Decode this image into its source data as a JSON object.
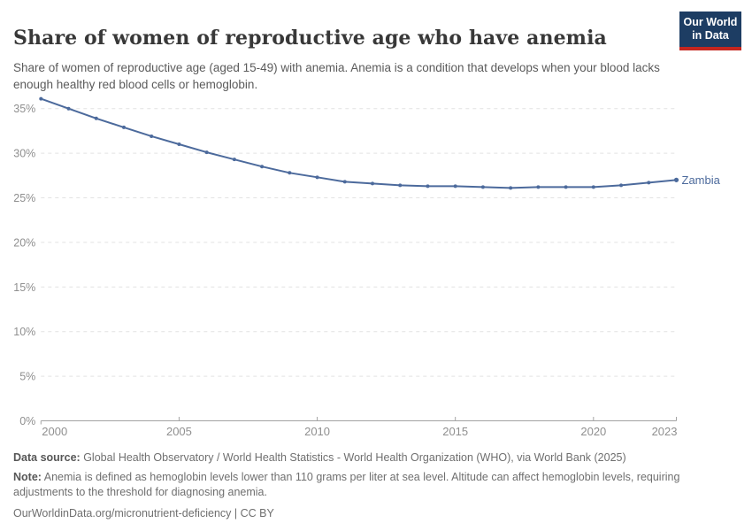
{
  "header": {
    "title": "Share of women of reproductive age who have anemia",
    "subtitle": "Share of women of reproductive age (aged 15-49) with anemia. Anemia is a condition that develops when your blood lacks enough healthy red blood cells or hemoglobin.",
    "logo": {
      "line1": "Our World",
      "line2": "in Data",
      "bg_color": "#1d3d63",
      "accent_color": "#c4261f"
    }
  },
  "chart_data": {
    "type": "line",
    "title": "Share of women of reproductive age who have anemia",
    "xlabel": "",
    "ylabel": "",
    "x": [
      2000,
      2001,
      2002,
      2003,
      2004,
      2005,
      2006,
      2007,
      2008,
      2009,
      2010,
      2011,
      2012,
      2013,
      2014,
      2015,
      2016,
      2017,
      2018,
      2019,
      2020,
      2021,
      2022,
      2023
    ],
    "series": [
      {
        "name": "Zambia",
        "color": "#4c6a9c",
        "values": [
          36.1,
          35.0,
          33.9,
          32.9,
          31.9,
          31.0,
          30.1,
          29.3,
          28.5,
          27.8,
          27.3,
          26.8,
          26.6,
          26.4,
          26.3,
          26.3,
          26.2,
          26.1,
          26.2,
          26.2,
          26.2,
          26.4,
          26.7,
          27.0
        ]
      }
    ],
    "x_ticks": [
      2000,
      2005,
      2010,
      2015,
      2020,
      2023
    ],
    "y_ticks": [
      0,
      5,
      10,
      15,
      20,
      25,
      30,
      35
    ],
    "y_tick_suffix": "%",
    "xlim": [
      2000,
      2023
    ],
    "ylim": [
      0,
      37.5
    ],
    "grid": "dashed-horizontal",
    "legend": "inline-end-label",
    "colors": {
      "gridline": "#e2e2e2",
      "axis": "#a3a3a3",
      "tick_label": "#8f8f8f"
    }
  },
  "footer": {
    "datasource_label": "Data source:",
    "datasource_text": " Global Health Observatory / World Health Statistics - World Health Organization (WHO), via World Bank (2025)",
    "note_label": "Note:",
    "note_text": " Anemia is defined as hemoglobin levels lower than 110 grams per liter at sea level. Altitude can affect hemoglobin levels, requiring adjustments to the threshold for diagnosing anemia.",
    "link": "OurWorldinData.org/micronutrient-deficiency | CC BY"
  }
}
